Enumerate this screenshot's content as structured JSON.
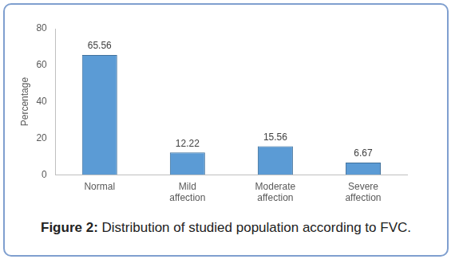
{
  "chart_data": {
    "type": "bar",
    "title": "Figure 2: Distribution of studied population according to FVC.",
    "y_label": "Percentage",
    "categories": [
      "Normal",
      "Mild affection",
      "Moderate affection",
      "Severe affection"
    ],
    "values": [
      65.56,
      12.22,
      15.56,
      6.67
    ],
    "color": "#5b9bd5",
    "ylim": [
      0,
      80
    ],
    "yticks": [
      0,
      20,
      40,
      60,
      80
    ],
    "grid": false,
    "data_labels": true
  }
}
